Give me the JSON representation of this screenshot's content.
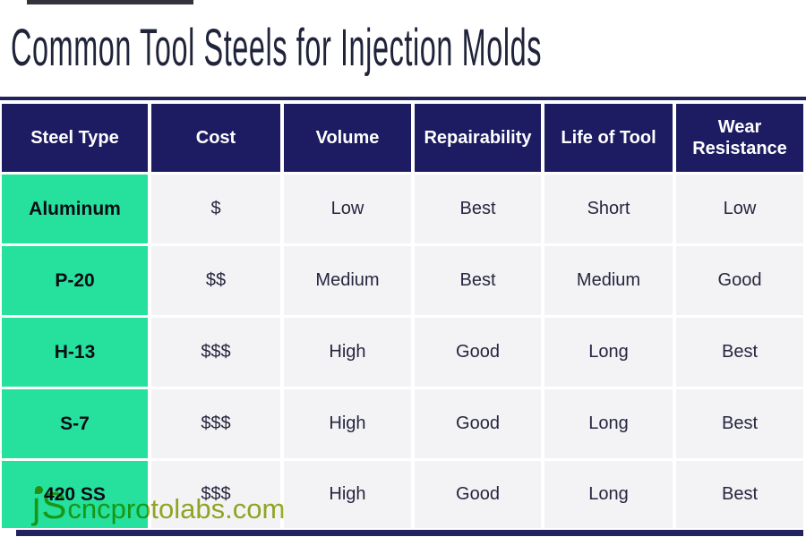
{
  "page": {
    "title": "Common Tool Steels for Injection Molds"
  },
  "chart_data": {
    "type": "table",
    "title": "Common Tool Steels for Injection Molds",
    "columns": [
      "Steel Type",
      "Cost",
      "Volume",
      "Repairability",
      "Life of Tool",
      "Wear Resistance"
    ],
    "rows": [
      [
        "Aluminum",
        "$",
        "Low",
        "Best",
        "Short",
        "Low"
      ],
      [
        "P-20",
        "$$",
        "Medium",
        "Best",
        "Medium",
        "Good"
      ],
      [
        "H-13",
        "$$$",
        "High",
        "Good",
        "Long",
        "Best"
      ],
      [
        "S-7",
        "$$$",
        "High",
        "Good",
        "Long",
        "Best"
      ],
      [
        "420 SS",
        "$$$",
        "High",
        "Good",
        "Long",
        "Best"
      ]
    ],
    "layout_hints": {
      "header_row": true,
      "row_label_column": true,
      "grid": "white gaps between cells"
    }
  },
  "watermark": {
    "prefix": "jS",
    "domain": "cncprotolabs.com"
  },
  "colors": {
    "header_bg": "#1d1c62",
    "row_label_bg": "#26e09e",
    "cell_bg": "#f3f3f6",
    "header_text": "#ffffff",
    "cell_text": "#26263e",
    "title_text": "#20243a",
    "rule_navy": "#23225e",
    "watermark_green": "#98ac23",
    "watermark_dot_orange": "#f6a21c"
  }
}
